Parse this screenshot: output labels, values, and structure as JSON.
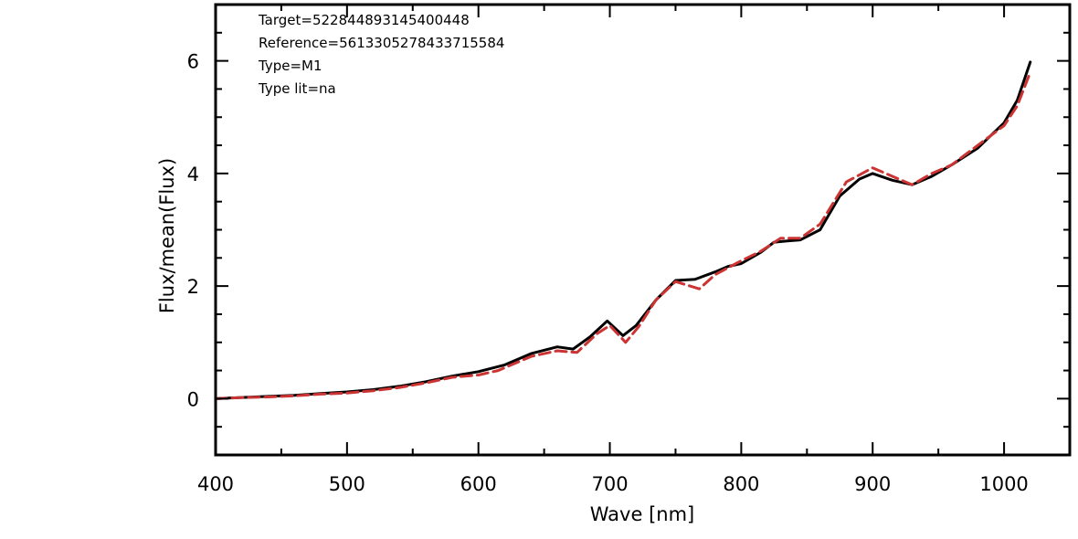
{
  "chart_data": {
    "type": "line",
    "title": "",
    "xlabel": "Wave [nm]",
    "ylabel": "Flux/mean(Flux)",
    "xlim": [
      400,
      1050
    ],
    "ylim": [
      -1,
      7
    ],
    "x_ticks": [
      400,
      500,
      600,
      700,
      800,
      900,
      1000
    ],
    "y_ticks": [
      0,
      2,
      4,
      6
    ],
    "grid": false,
    "legend": "none",
    "annotations": [
      "Target=5228448931454004​48",
      "Reference=5613305278433715584",
      "Type=M1",
      "Type lit=na"
    ],
    "series": [
      {
        "style": "solid",
        "color": "#000000",
        "x": [
          400,
          420,
          440,
          460,
          480,
          500,
          520,
          540,
          560,
          580,
          600,
          620,
          640,
          660,
          672,
          685,
          698,
          710,
          720,
          735,
          750,
          765,
          780,
          790,
          800,
          815,
          825,
          835,
          845,
          860,
          875,
          890,
          900,
          915,
          930,
          945,
          960,
          980,
          1000,
          1010,
          1020
        ],
        "y": [
          0.0,
          0.02,
          0.04,
          0.06,
          0.09,
          0.12,
          0.16,
          0.22,
          0.3,
          0.4,
          0.48,
          0.6,
          0.8,
          0.92,
          0.88,
          1.1,
          1.38,
          1.12,
          1.3,
          1.75,
          2.1,
          2.12,
          2.25,
          2.35,
          2.4,
          2.6,
          2.78,
          2.8,
          2.82,
          3.0,
          3.6,
          3.9,
          4.0,
          3.88,
          3.8,
          3.95,
          4.15,
          4.45,
          4.9,
          5.3,
          5.98
        ]
      },
      {
        "style": "dashed",
        "color": "#cc3333",
        "x": [
          400,
          420,
          440,
          460,
          480,
          500,
          520,
          540,
          560,
          580,
          600,
          615,
          640,
          660,
          675,
          690,
          700,
          712,
          722,
          735,
          750,
          768,
          780,
          800,
          815,
          830,
          845,
          860,
          880,
          900,
          915,
          930,
          945,
          960,
          980,
          1000,
          1010,
          1020
        ],
        "y": [
          0.0,
          0.02,
          0.03,
          0.05,
          0.08,
          0.1,
          0.14,
          0.2,
          0.28,
          0.38,
          0.42,
          0.5,
          0.75,
          0.85,
          0.82,
          1.15,
          1.3,
          1.0,
          1.28,
          1.75,
          2.08,
          1.95,
          2.2,
          2.45,
          2.62,
          2.85,
          2.85,
          3.1,
          3.85,
          4.1,
          3.95,
          3.8,
          4.0,
          4.15,
          4.5,
          4.85,
          5.2,
          5.8
        ]
      }
    ]
  }
}
